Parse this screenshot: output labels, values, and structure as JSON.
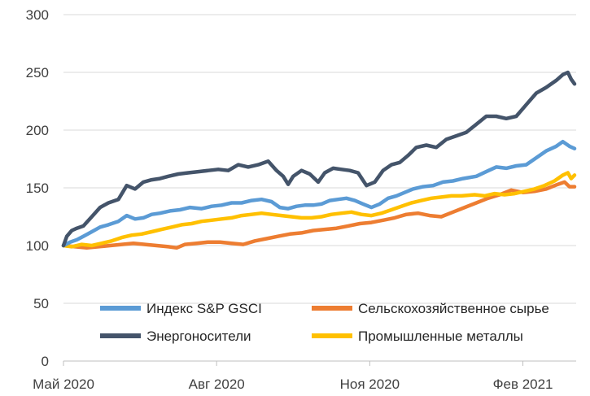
{
  "chart_data": {
    "type": "line",
    "title": "",
    "xlabel": "",
    "ylabel": "",
    "ylim": [
      0,
      300
    ],
    "yticks": [
      0,
      50,
      100,
      150,
      200,
      250,
      300
    ],
    "xlim": [
      "2020-05-01",
      "2021-03-05"
    ],
    "xticks": [
      {
        "date": "2020-05-01",
        "label": "Май 2020"
      },
      {
        "date": "2020-08-01",
        "label": "Авг 2020"
      },
      {
        "date": "2020-11-01",
        "label": "Ноя 2020"
      },
      {
        "date": "2021-02-01",
        "label": "Фев 2021"
      }
    ],
    "grid": "horizontal",
    "legend_position": "bottom-inside",
    "series": [
      {
        "name": "Индекс S&P GSCI",
        "color": "#5B9BD5",
        "points": [
          [
            "2020-05-01",
            100
          ],
          [
            "2020-05-05",
            103
          ],
          [
            "2020-05-09",
            105
          ],
          [
            "2020-05-13",
            108
          ],
          [
            "2020-05-18",
            112
          ],
          [
            "2020-05-23",
            116
          ],
          [
            "2020-05-28",
            118
          ],
          [
            "2020-06-03",
            121
          ],
          [
            "2020-06-08",
            126
          ],
          [
            "2020-06-13",
            123
          ],
          [
            "2020-06-18",
            124
          ],
          [
            "2020-06-23",
            127
          ],
          [
            "2020-06-28",
            128
          ],
          [
            "2020-07-04",
            130
          ],
          [
            "2020-07-10",
            131
          ],
          [
            "2020-07-16",
            133
          ],
          [
            "2020-07-23",
            132
          ],
          [
            "2020-07-29",
            134
          ],
          [
            "2020-08-04",
            135
          ],
          [
            "2020-08-10",
            137
          ],
          [
            "2020-08-16",
            137
          ],
          [
            "2020-08-22",
            139
          ],
          [
            "2020-08-28",
            140
          ],
          [
            "2020-09-03",
            138
          ],
          [
            "2020-09-08",
            133
          ],
          [
            "2020-09-13",
            132
          ],
          [
            "2020-09-18",
            134
          ],
          [
            "2020-09-23",
            135
          ],
          [
            "2020-09-28",
            135
          ],
          [
            "2020-10-03",
            136
          ],
          [
            "2020-10-08",
            139
          ],
          [
            "2020-10-13",
            140
          ],
          [
            "2020-10-18",
            141
          ],
          [
            "2020-10-23",
            139
          ],
          [
            "2020-10-28",
            136
          ],
          [
            "2020-11-02",
            133
          ],
          [
            "2020-11-07",
            136
          ],
          [
            "2020-11-12",
            141
          ],
          [
            "2020-11-17",
            143
          ],
          [
            "2020-11-22",
            146
          ],
          [
            "2020-11-27",
            149
          ],
          [
            "2020-12-03",
            151
          ],
          [
            "2020-12-09",
            152
          ],
          [
            "2020-12-15",
            155
          ],
          [
            "2020-12-21",
            156
          ],
          [
            "2020-12-27",
            158
          ],
          [
            "2021-01-04",
            160
          ],
          [
            "2021-01-10",
            164
          ],
          [
            "2021-01-16",
            168
          ],
          [
            "2021-01-22",
            167
          ],
          [
            "2021-01-28",
            169
          ],
          [
            "2021-02-03",
            170
          ],
          [
            "2021-02-09",
            176
          ],
          [
            "2021-02-15",
            182
          ],
          [
            "2021-02-21",
            186
          ],
          [
            "2021-02-25",
            190
          ],
          [
            "2021-03-01",
            186
          ],
          [
            "2021-03-04",
            184
          ]
        ]
      },
      {
        "name": "Сельскохозяйственное сырье",
        "color": "#ED7D31",
        "points": [
          [
            "2020-05-01",
            100
          ],
          [
            "2020-05-08",
            99
          ],
          [
            "2020-05-15",
            98
          ],
          [
            "2020-05-22",
            99
          ],
          [
            "2020-05-29",
            100
          ],
          [
            "2020-06-05",
            101
          ],
          [
            "2020-06-12",
            102
          ],
          [
            "2020-06-19",
            101
          ],
          [
            "2020-06-26",
            100
          ],
          [
            "2020-07-03",
            99
          ],
          [
            "2020-07-08",
            98
          ],
          [
            "2020-07-13",
            101
          ],
          [
            "2020-07-20",
            102
          ],
          [
            "2020-07-27",
            103
          ],
          [
            "2020-08-03",
            103
          ],
          [
            "2020-08-10",
            102
          ],
          [
            "2020-08-17",
            101
          ],
          [
            "2020-08-24",
            104
          ],
          [
            "2020-08-31",
            106
          ],
          [
            "2020-09-07",
            108
          ],
          [
            "2020-09-14",
            110
          ],
          [
            "2020-09-21",
            111
          ],
          [
            "2020-09-28",
            113
          ],
          [
            "2020-10-05",
            114
          ],
          [
            "2020-10-12",
            115
          ],
          [
            "2020-10-19",
            117
          ],
          [
            "2020-10-26",
            119
          ],
          [
            "2020-11-02",
            120
          ],
          [
            "2020-11-09",
            122
          ],
          [
            "2020-11-16",
            124
          ],
          [
            "2020-11-23",
            127
          ],
          [
            "2020-11-30",
            128
          ],
          [
            "2020-12-07",
            126
          ],
          [
            "2020-12-14",
            125
          ],
          [
            "2020-12-21",
            129
          ],
          [
            "2020-12-28",
            133
          ],
          [
            "2021-01-04",
            137
          ],
          [
            "2021-01-11",
            141
          ],
          [
            "2021-01-18",
            144
          ],
          [
            "2021-01-25",
            148
          ],
          [
            "2021-02-01",
            146
          ],
          [
            "2021-02-08",
            147
          ],
          [
            "2021-02-15",
            149
          ],
          [
            "2021-02-22",
            153
          ],
          [
            "2021-02-26",
            155
          ],
          [
            "2021-03-01",
            151
          ],
          [
            "2021-03-04",
            151
          ]
        ]
      },
      {
        "name": "Энергоносители",
        "color": "#44546A",
        "points": [
          [
            "2020-05-01",
            100
          ],
          [
            "2020-05-03",
            108
          ],
          [
            "2020-05-06",
            113
          ],
          [
            "2020-05-09",
            115
          ],
          [
            "2020-05-13",
            117
          ],
          [
            "2020-05-18",
            125
          ],
          [
            "2020-05-23",
            133
          ],
          [
            "2020-05-28",
            137
          ],
          [
            "2020-06-03",
            140
          ],
          [
            "2020-06-08",
            152
          ],
          [
            "2020-06-13",
            149
          ],
          [
            "2020-06-18",
            155
          ],
          [
            "2020-06-23",
            157
          ],
          [
            "2020-06-28",
            158
          ],
          [
            "2020-07-03",
            160
          ],
          [
            "2020-07-09",
            162
          ],
          [
            "2020-07-15",
            163
          ],
          [
            "2020-07-21",
            164
          ],
          [
            "2020-07-27",
            165
          ],
          [
            "2020-08-02",
            166
          ],
          [
            "2020-08-08",
            165
          ],
          [
            "2020-08-14",
            170
          ],
          [
            "2020-08-20",
            168
          ],
          [
            "2020-08-26",
            170
          ],
          [
            "2020-09-01",
            173
          ],
          [
            "2020-09-06",
            165
          ],
          [
            "2020-09-10",
            160
          ],
          [
            "2020-09-13",
            153
          ],
          [
            "2020-09-16",
            160
          ],
          [
            "2020-09-21",
            165
          ],
          [
            "2020-09-26",
            162
          ],
          [
            "2020-10-01",
            155
          ],
          [
            "2020-10-05",
            163
          ],
          [
            "2020-10-10",
            167
          ],
          [
            "2020-10-15",
            166
          ],
          [
            "2020-10-20",
            165
          ],
          [
            "2020-10-25",
            163
          ],
          [
            "2020-10-30",
            152
          ],
          [
            "2020-11-04",
            155
          ],
          [
            "2020-11-09",
            165
          ],
          [
            "2020-11-14",
            170
          ],
          [
            "2020-11-19",
            172
          ],
          [
            "2020-11-24",
            178
          ],
          [
            "2020-11-29",
            185
          ],
          [
            "2020-12-05",
            187
          ],
          [
            "2020-12-11",
            185
          ],
          [
            "2020-12-17",
            192
          ],
          [
            "2020-12-23",
            195
          ],
          [
            "2020-12-29",
            198
          ],
          [
            "2021-01-04",
            205
          ],
          [
            "2021-01-10",
            212
          ],
          [
            "2021-01-16",
            212
          ],
          [
            "2021-01-22",
            210
          ],
          [
            "2021-01-28",
            212
          ],
          [
            "2021-02-03",
            222
          ],
          [
            "2021-02-09",
            232
          ],
          [
            "2021-02-15",
            237
          ],
          [
            "2021-02-21",
            243
          ],
          [
            "2021-02-25",
            248
          ],
          [
            "2021-02-28",
            250
          ],
          [
            "2021-03-02",
            244
          ],
          [
            "2021-03-04",
            240
          ]
        ]
      },
      {
        "name": "Промышленные металлы",
        "color": "#FFC000",
        "points": [
          [
            "2020-05-01",
            100
          ],
          [
            "2020-05-06",
            99
          ],
          [
            "2020-05-12",
            101
          ],
          [
            "2020-05-18",
            100
          ],
          [
            "2020-05-24",
            102
          ],
          [
            "2020-05-30",
            104
          ],
          [
            "2020-06-05",
            107
          ],
          [
            "2020-06-11",
            109
          ],
          [
            "2020-06-17",
            110
          ],
          [
            "2020-06-23",
            112
          ],
          [
            "2020-06-29",
            114
          ],
          [
            "2020-07-05",
            116
          ],
          [
            "2020-07-11",
            118
          ],
          [
            "2020-07-17",
            119
          ],
          [
            "2020-07-23",
            121
          ],
          [
            "2020-07-29",
            122
          ],
          [
            "2020-08-04",
            123
          ],
          [
            "2020-08-10",
            124
          ],
          [
            "2020-08-16",
            126
          ],
          [
            "2020-08-22",
            127
          ],
          [
            "2020-08-28",
            128
          ],
          [
            "2020-09-03",
            127
          ],
          [
            "2020-09-09",
            126
          ],
          [
            "2020-09-15",
            125
          ],
          [
            "2020-09-21",
            124
          ],
          [
            "2020-09-27",
            124
          ],
          [
            "2020-10-03",
            125
          ],
          [
            "2020-10-09",
            127
          ],
          [
            "2020-10-15",
            128
          ],
          [
            "2020-10-21",
            129
          ],
          [
            "2020-10-27",
            127
          ],
          [
            "2020-11-02",
            126
          ],
          [
            "2020-11-08",
            128
          ],
          [
            "2020-11-14",
            131
          ],
          [
            "2020-11-20",
            134
          ],
          [
            "2020-11-26",
            137
          ],
          [
            "2020-12-02",
            139
          ],
          [
            "2020-12-08",
            141
          ],
          [
            "2020-12-14",
            142
          ],
          [
            "2020-12-20",
            143
          ],
          [
            "2020-12-26",
            143
          ],
          [
            "2021-01-03",
            144
          ],
          [
            "2021-01-09",
            143
          ],
          [
            "2021-01-15",
            145
          ],
          [
            "2021-01-21",
            144
          ],
          [
            "2021-01-27",
            145
          ],
          [
            "2021-02-02",
            147
          ],
          [
            "2021-02-08",
            149
          ],
          [
            "2021-02-14",
            152
          ],
          [
            "2021-02-20",
            156
          ],
          [
            "2021-02-25",
            161
          ],
          [
            "2021-02-28",
            163
          ],
          [
            "2021-03-02",
            158
          ],
          [
            "2021-03-04",
            161
          ]
        ]
      }
    ]
  }
}
